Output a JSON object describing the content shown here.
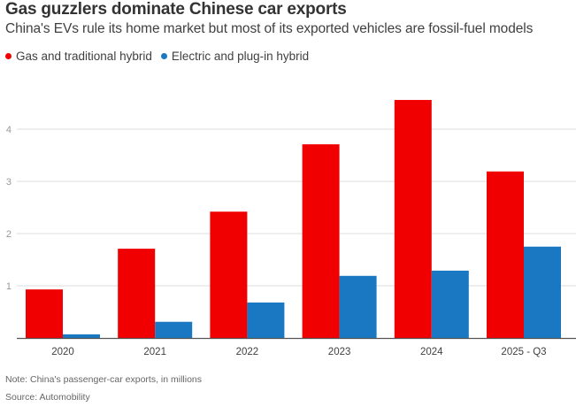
{
  "header": {
    "title": "Gas guzzlers dominate Chinese car exports",
    "subtitle": "China's EVs rule its home market but most of its exported vehicles are fossil-fuel models"
  },
  "legend": [
    {
      "label": "Gas and traditional hybrid",
      "color": "#f00000"
    },
    {
      "label": "Electric and plug-in hybrid",
      "color": "#1a78c2"
    }
  ],
  "footer": {
    "note": "Note: China's passenger-car exports, in millions",
    "source": "Source: Automobility"
  },
  "chart_data": {
    "type": "bar",
    "title": "Gas guzzlers dominate Chinese car exports",
    "subtitle": "China's EVs rule its home market but most of its exported vehicles are fossil-fuel models",
    "xlabel": "",
    "ylabel": "",
    "categories": [
      "2020",
      "2021",
      "2022",
      "2023",
      "2024",
      "2025 - Q3"
    ],
    "series": [
      {
        "name": "Gas and traditional hybrid",
        "color": "#f00000",
        "values": [
          0.93,
          1.71,
          2.42,
          3.71,
          4.56,
          3.19
        ]
      },
      {
        "name": "Electric and plug-in hybrid",
        "color": "#1a78c2",
        "values": [
          0.07,
          0.31,
          0.68,
          1.19,
          1.29,
          1.75
        ]
      }
    ],
    "ylim": [
      0,
      4.7
    ],
    "yticks": [
      1,
      2,
      3,
      4
    ],
    "grid": true,
    "legend_position": "top-left",
    "units": "millions"
  }
}
